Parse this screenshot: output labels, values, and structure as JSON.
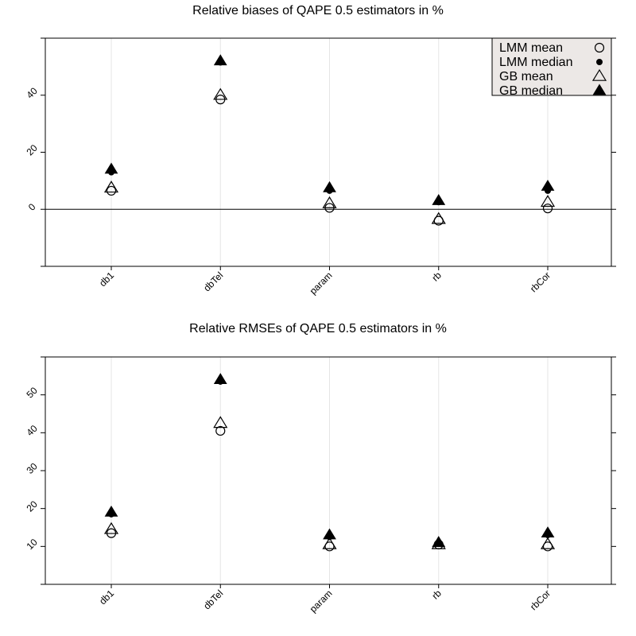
{
  "chart_data": [
    {
      "type": "scatter",
      "title": "Relative biases of QAPE 0.5 estimators in %",
      "xlabel": "",
      "ylabel": "",
      "categories": [
        "db1",
        "dbTel",
        "param",
        "rb",
        "rbCor"
      ],
      "ylim": [
        -20,
        60
      ],
      "yticks": [
        0,
        20,
        40
      ],
      "reference_line": 0,
      "grid": "vertical",
      "legend": {
        "position": "top-right",
        "entries": [
          "LMM mean",
          "LMM median",
          "GB mean",
          "GB median"
        ]
      },
      "series": [
        {
          "name": "LMM mean",
          "marker": "open-circle",
          "values": [
            6.5,
            38.5,
            0.5,
            -4.0,
            0.3
          ]
        },
        {
          "name": "LMM median",
          "marker": "filled-circle",
          "values": [
            13.0,
            51.5,
            6.5,
            2.5,
            6.5
          ]
        },
        {
          "name": "GB mean",
          "marker": "open-triangle",
          "values": [
            7.5,
            40.0,
            2.0,
            -3.5,
            2.5
          ]
        },
        {
          "name": "GB median",
          "marker": "filled-triangle",
          "values": [
            14.0,
            52.0,
            7.5,
            3.0,
            8.0
          ]
        }
      ]
    },
    {
      "type": "scatter",
      "title": "Relative RMSEs of QAPE 0.5 estimators in %",
      "xlabel": "",
      "ylabel": "",
      "categories": [
        "db1",
        "dbTel",
        "param",
        "rb",
        "rbCor"
      ],
      "ylim": [
        0,
        60
      ],
      "yticks": [
        10,
        20,
        30,
        40,
        50
      ],
      "grid": "vertical",
      "series": [
        {
          "name": "LMM mean",
          "marker": "open-circle",
          "values": [
            13.5,
            40.5,
            10.0,
            10.5,
            10.0
          ]
        },
        {
          "name": "LMM median",
          "marker": "filled-circle",
          "values": [
            18.5,
            53.5,
            12.5,
            11.0,
            13.0
          ]
        },
        {
          "name": "GB mean",
          "marker": "open-triangle",
          "values": [
            14.5,
            42.5,
            10.5,
            10.5,
            10.5
          ]
        },
        {
          "name": "GB median",
          "marker": "filled-triangle",
          "values": [
            19.0,
            54.0,
            13.0,
            11.0,
            13.5
          ]
        }
      ]
    }
  ]
}
